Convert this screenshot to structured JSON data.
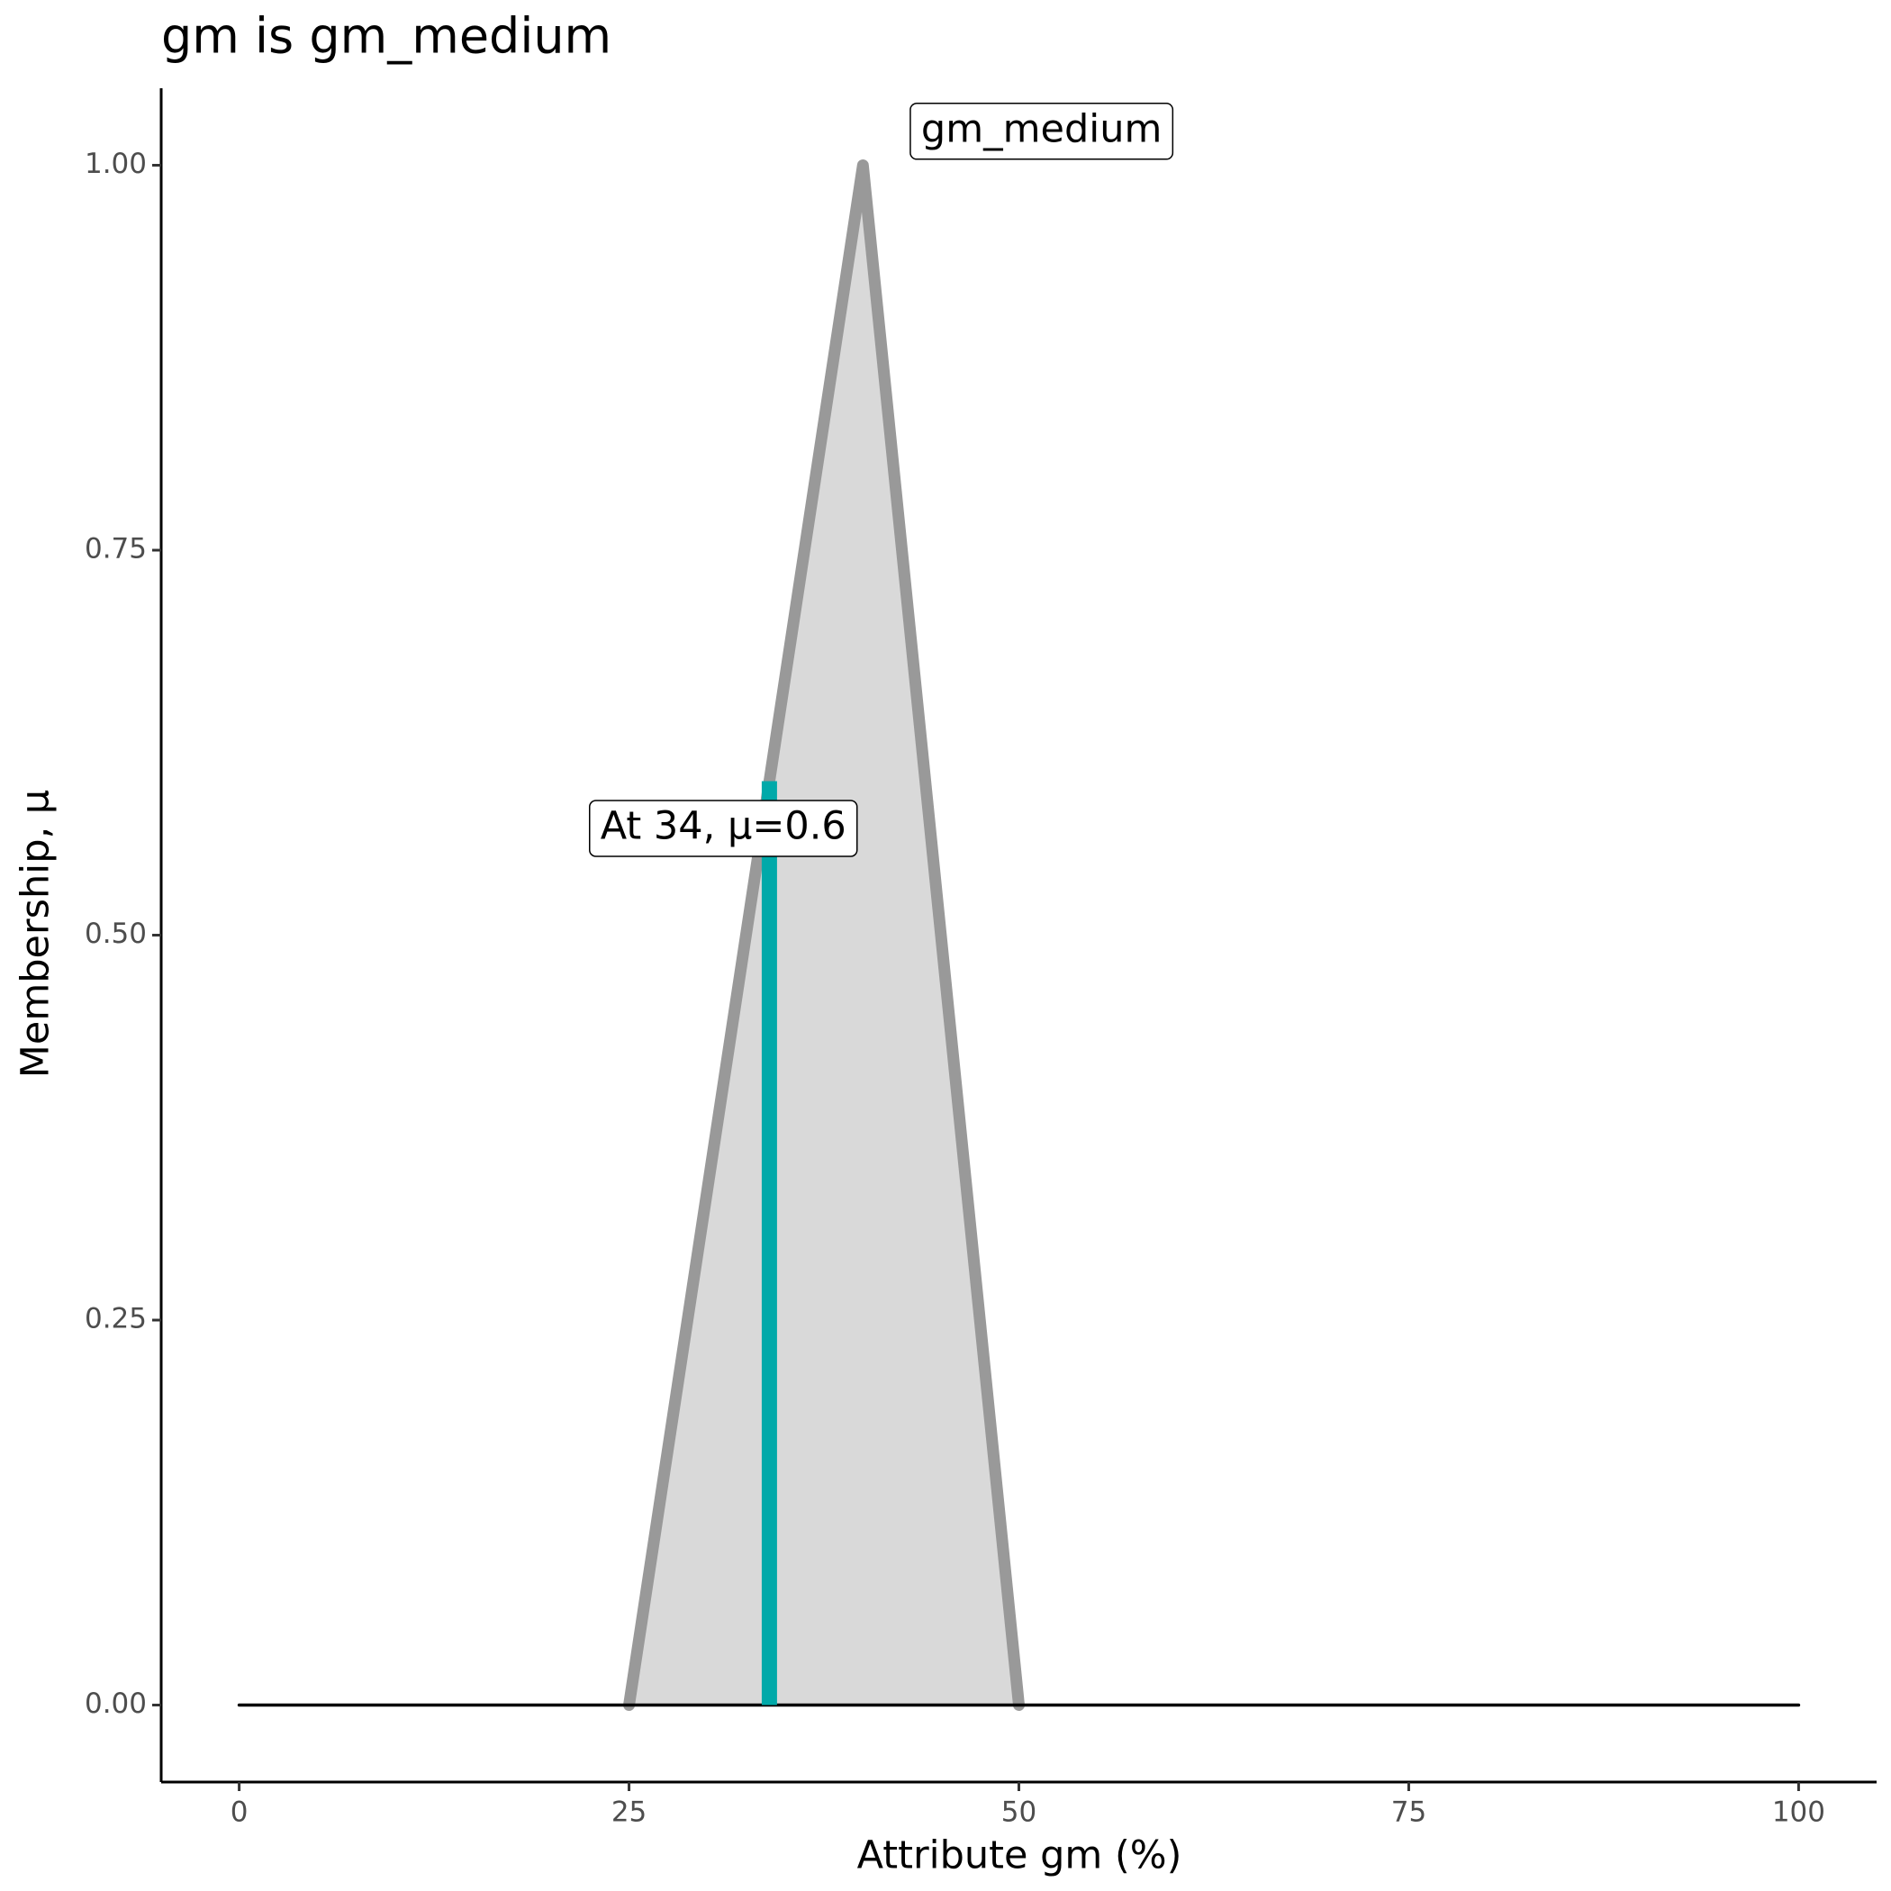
{
  "chart_data": {
    "type": "line",
    "title": "gm is gm_medium",
    "x_label": "Attribute gm (%)",
    "y_label": "Membership, μ",
    "series": [
      {
        "name": "gm_medium",
        "color": "#999999",
        "fill": "#d9d9d9",
        "x": [
          25,
          40,
          50
        ],
        "values": [
          0,
          1,
          0
        ]
      },
      {
        "color": "#000000",
        "x": [
          0,
          100
        ],
        "values": [
          0,
          0
        ]
      }
    ],
    "marker": {
      "label": "At 34, μ=0.6",
      "x": 34,
      "value": 0.6,
      "color": "#00a9a9"
    },
    "xlim": [
      -5,
      105
    ],
    "ylim": [
      -0.05,
      1.05
    ],
    "xticks": [
      0,
      25,
      50,
      75,
      100
    ],
    "yticks": [
      {
        "value": 0,
        "label": "0.00"
      },
      {
        "value": 0.25,
        "label": "0.25"
      },
      {
        "value": 0.5,
        "label": "0.50"
      },
      {
        "value": 0.75,
        "label": "0.75"
      },
      {
        "value": 1,
        "label": "1.00"
      }
    ]
  }
}
